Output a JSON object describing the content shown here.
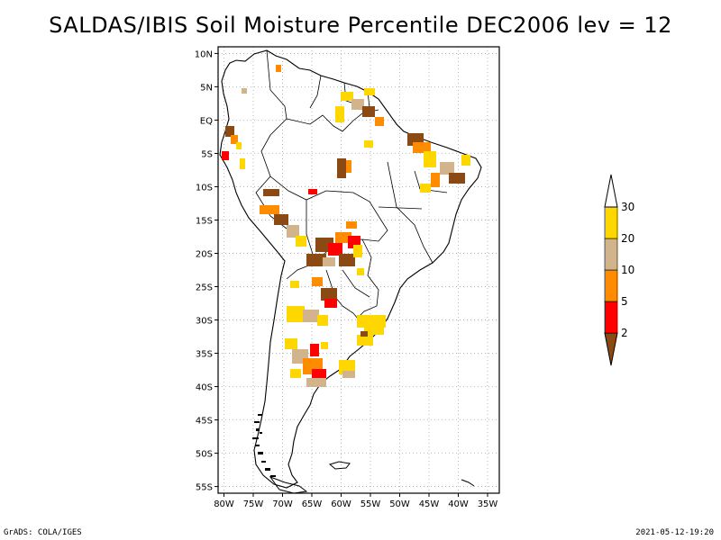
{
  "title": "SALDAS/IBIS Soil Moisture Percentile DEC2006 lev = 12",
  "footer": {
    "left": "GrADS: COLA/IGES",
    "right": "2021-05-12-19:20"
  },
  "map": {
    "lon_range": [
      -81,
      -33
    ],
    "lat_range": [
      -56,
      11
    ],
    "lat_ticks": [
      {
        "value": 10,
        "label": "10N"
      },
      {
        "value": 5,
        "label": "5N"
      },
      {
        "value": 0,
        "label": "EQ"
      },
      {
        "value": -5,
        "label": "5S"
      },
      {
        "value": -10,
        "label": "10S"
      },
      {
        "value": -15,
        "label": "15S"
      },
      {
        "value": -20,
        "label": "20S"
      },
      {
        "value": -25,
        "label": "25S"
      },
      {
        "value": -30,
        "label": "30S"
      },
      {
        "value": -35,
        "label": "35S"
      },
      {
        "value": -40,
        "label": "40S"
      },
      {
        "value": -45,
        "label": "45S"
      },
      {
        "value": -50,
        "label": "50S"
      },
      {
        "value": -55,
        "label": "55S"
      }
    ],
    "lon_ticks": [
      {
        "value": -80,
        "label": "80W"
      },
      {
        "value": -75,
        "label": "75W"
      },
      {
        "value": -70,
        "label": "70W"
      },
      {
        "value": -65,
        "label": "65W"
      },
      {
        "value": -60,
        "label": "60W"
      },
      {
        "value": -55,
        "label": "55W"
      },
      {
        "value": -50,
        "label": "50W"
      },
      {
        "value": -45,
        "label": "45W"
      },
      {
        "value": -40,
        "label": "40W"
      },
      {
        "value": -35,
        "label": "35W"
      }
    ],
    "colors": {
      "below_2": "#8b4a14",
      "2_5": "#ff0000",
      "5_10": "#ff8c00",
      "10_20": "#d2b48c",
      "20_30": "#ffd700",
      "above_30": "#ffffff"
    }
  },
  "colorbar": {
    "labels": [
      "2",
      "5",
      "10",
      "20",
      "30"
    ],
    "colors": [
      "#8b4a14",
      "#ff0000",
      "#ff8c00",
      "#d2b48c",
      "#ffd700",
      "#ffffff"
    ]
  }
}
